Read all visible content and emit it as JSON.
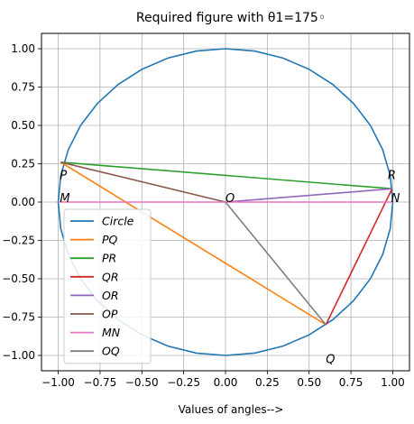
{
  "chart_data": {
    "type": "line",
    "title": "Required figure with θ1=175◦",
    "xlabel": "Values of angles-->",
    "ylabel": "",
    "xlim": [
      -1.1,
      1.1
    ],
    "ylim": [
      -1.1,
      1.1
    ],
    "grid": true,
    "legend_position": "lower-left",
    "x_ticks": [
      -1.0,
      -0.75,
      -0.5,
      -0.25,
      0.0,
      0.25,
      0.5,
      0.75,
      1.0
    ],
    "x_tick_labels": [
      "−1.00",
      "−0.75",
      "−0.50",
      "−0.25",
      "0.00",
      "0.25",
      "0.50",
      "0.75",
      "1.00"
    ],
    "y_ticks": [
      1.0,
      0.75,
      0.5,
      0.25,
      0.0,
      -0.25,
      -0.5,
      -0.75,
      -1.0
    ],
    "y_tick_labels": [
      "1.00",
      "0.75",
      "0.50",
      "0.25",
      "0.00",
      "−0.25",
      "−0.50",
      "−0.75",
      "−1.00"
    ],
    "circle": {
      "name": "Circle",
      "center": [
        0,
        0
      ],
      "radius": 1,
      "color": "#1f77b4"
    },
    "series": [
      {
        "name": "PQ",
        "color": "#ff7f0e",
        "x": [
          -0.985,
          0.6
        ],
        "y": [
          0.26,
          -0.8
        ]
      },
      {
        "name": "PR",
        "color": "#2ca02c",
        "x": [
          -0.985,
          0.996
        ],
        "y": [
          0.26,
          0.087
        ]
      },
      {
        "name": "QR",
        "color": "#d62728",
        "x": [
          0.6,
          0.996
        ],
        "y": [
          -0.8,
          0.087
        ]
      },
      {
        "name": "OR",
        "color": "#9467bd",
        "x": [
          0.0,
          0.996
        ],
        "y": [
          0.0,
          0.087
        ]
      },
      {
        "name": "OP",
        "color": "#8c564b",
        "x": [
          0.0,
          -0.985
        ],
        "y": [
          0.0,
          0.26
        ]
      },
      {
        "name": "MN",
        "color": "#e377c2",
        "x": [
          -1.0,
          1.0
        ],
        "y": [
          0.0,
          0.0
        ]
      },
      {
        "name": "OQ",
        "color": "#7f7f7f",
        "x": [
          0.0,
          0.6
        ],
        "y": [
          0.0,
          -0.8
        ]
      }
    ],
    "annotations": [
      {
        "text": "P",
        "x": -0.99,
        "y": 0.15
      },
      {
        "text": "M",
        "x": -0.99,
        "y": 0.0
      },
      {
        "text": "O",
        "x": 0.0,
        "y": 0.0
      },
      {
        "text": "R",
        "x": 0.97,
        "y": 0.15
      },
      {
        "text": "N",
        "x": 0.99,
        "y": 0.0
      },
      {
        "text": "Q",
        "x": 0.6,
        "y": -1.05
      }
    ]
  }
}
